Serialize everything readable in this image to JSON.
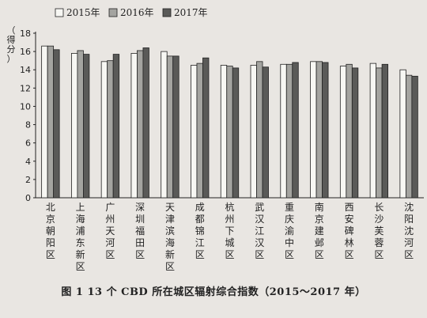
{
  "caption": "图 1   13 个 CBD 所在城区辐射综合指数（2015～2017 年）",
  "chart_data": {
    "type": "bar",
    "ylabel": "（得分）",
    "ylim": [
      0,
      18
    ],
    "yticks": [
      0,
      2,
      4,
      6,
      8,
      10,
      12,
      14,
      16,
      18
    ],
    "legend_position": "top-left",
    "categories": [
      "北京朝阳区",
      "上海浦东新区",
      "广州天河区",
      "深圳福田区",
      "天津滨海新区",
      "成都锦江区",
      "杭州下城区",
      "武汉江汉区",
      "重庆渝中区",
      "南京建邺区",
      "西安碑林区",
      "长沙芙蓉区",
      "沈阳沈河区"
    ],
    "series": [
      {
        "name": "2015年",
        "color": "#f7f7f3",
        "values": [
          16.6,
          15.8,
          14.9,
          15.8,
          16.0,
          14.5,
          14.5,
          14.5,
          14.6,
          14.9,
          14.4,
          14.7,
          14.0
        ]
      },
      {
        "name": "2016年",
        "color": "#a4a4a0",
        "values": [
          16.6,
          16.1,
          15.0,
          16.1,
          15.5,
          14.7,
          14.4,
          14.9,
          14.6,
          14.9,
          14.6,
          14.2,
          13.4
        ]
      },
      {
        "name": "2017年",
        "color": "#5a5a58",
        "values": [
          16.2,
          15.7,
          15.7,
          16.4,
          15.5,
          15.3,
          14.2,
          14.3,
          14.8,
          14.8,
          14.2,
          14.6,
          13.3
        ]
      }
    ]
  }
}
